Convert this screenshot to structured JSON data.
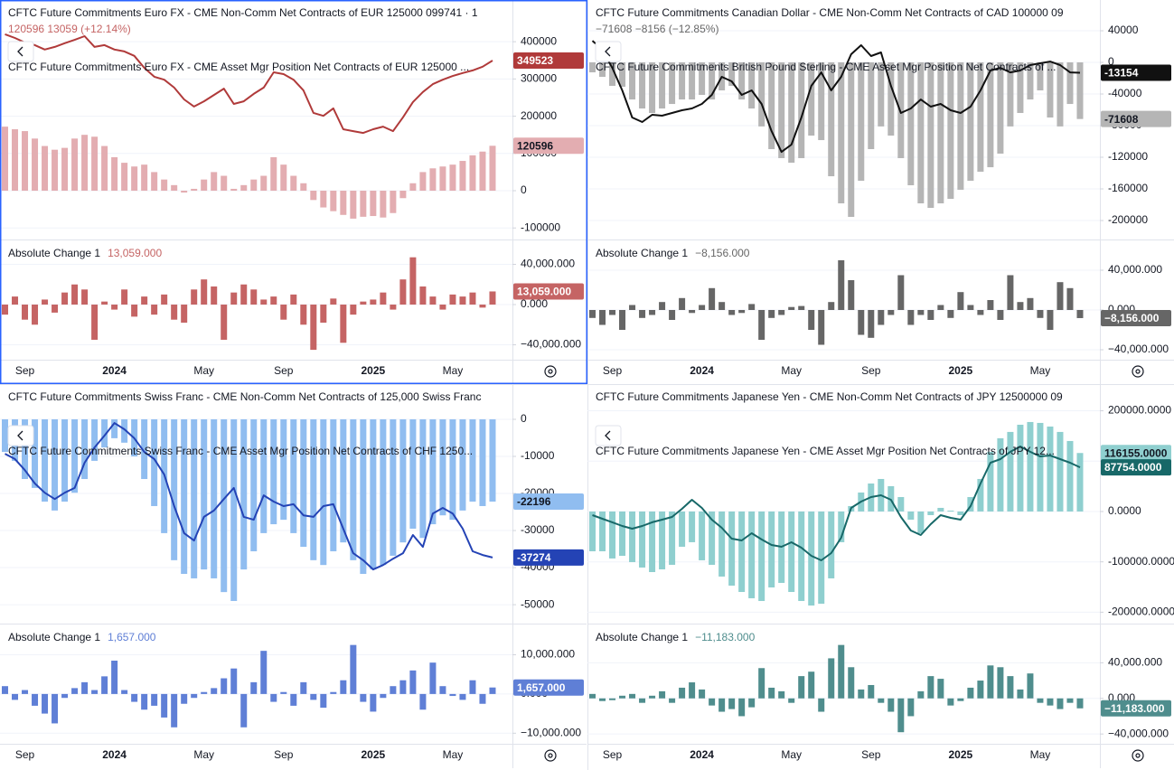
{
  "chart_data": [
    {
      "type": "line_bar",
      "legend_values": "120596  13059 (+12.14%)",
      "categories": [
        null,
        null,
        "Sep",
        null,
        null,
        null,
        null,
        null,
        null,
        null,
        null,
        "2024",
        null,
        null,
        null,
        null,
        null,
        null,
        null,
        null,
        "May",
        null,
        null,
        null,
        null,
        null,
        null,
        null,
        "Sep",
        null,
        null,
        null,
        null,
        null,
        null,
        null,
        null,
        "2025",
        null,
        null,
        null,
        null,
        null,
        null,
        null,
        "May",
        null,
        null,
        null,
        null
      ],
      "ylim": [
        -131000,
        512000
      ],
      "yticks": [
        400000,
        300000,
        200000,
        100000,
        0,
        -100000
      ],
      "series": [
        {
          "name": "CFTC Future Commitments Euro FX - CME Non-Comm Net Contracts of EUR 125000 099741 · 1",
          "kind": "bar",
          "color": "#e3adb1",
          "values": [
            172000,
            165000,
            160000,
            140000,
            120000,
            110000,
            115000,
            140000,
            150000,
            145000,
            120000,
            90000,
            75000,
            65000,
            70000,
            50000,
            30000,
            15000,
            -5000,
            5000,
            30000,
            50000,
            40000,
            5000,
            15000,
            30000,
            40000,
            90000,
            70000,
            40000,
            20000,
            -25000,
            -45000,
            -55000,
            -65000,
            -75000,
            -70000,
            -68000,
            -72000,
            -60000,
            -20000,
            20000,
            50000,
            60000,
            65000,
            70000,
            80000,
            95000,
            105000,
            120596
          ]
        },
        {
          "name": "CFTC Future Commitments Euro FX - CME Asset Mgr Position Net Contracts of EUR 125000 ...",
          "kind": "line",
          "color": "#b03a3a",
          "values": [
            420000,
            410000,
            398000,
            391000,
            379000,
            386000,
            396000,
            405000,
            415000,
            386000,
            391000,
            379000,
            374000,
            362000,
            330000,
            306000,
            298000,
            277000,
            245000,
            226000,
            240000,
            257000,
            274000,
            233000,
            240000,
            260000,
            277000,
            318000,
            313000,
            298000,
            269000,
            209000,
            201000,
            221000,
            165000,
            160000,
            155000,
            165000,
            172000,
            160000,
            197000,
            238000,
            265000,
            286000,
            298000,
            308000,
            316000,
            323000,
            333000,
            349523
          ]
        }
      ],
      "panel": {
        "type": "bar",
        "title": "Absolute Change 1",
        "tag": "13,059.000",
        "color": "#c56464",
        "ylim": [
          -54800,
          64700
        ],
        "yticks": [
          {
            "value": 40000,
            "label": "40,000.000"
          },
          {
            "value": 0,
            "label": "0.000"
          },
          {
            "value": -40000,
            "label": "−40,000.000"
          }
        ],
        "values": [
          -10000,
          8000,
          -15000,
          -20000,
          5000,
          -8000,
          12000,
          20000,
          15000,
          -35000,
          3000,
          -5000,
          15000,
          -12000,
          8000,
          -10000,
          10000,
          -15000,
          -18000,
          15000,
          25000,
          18000,
          -35000,
          12000,
          20000,
          15000,
          5000,
          8000,
          -15000,
          10000,
          -20000,
          -45000,
          -18000,
          6000,
          -38000,
          -10000,
          3000,
          5000,
          12000,
          -5000,
          25000,
          47000,
          18000,
          8000,
          -5000,
          10000,
          8000,
          12000,
          -3000,
          13059
        ]
      }
    },
    {
      "type": "line_bar",
      "legend_values": "−71608  −8156 (−12.85%)",
      "categories": [
        null,
        null,
        "Sep",
        null,
        null,
        null,
        null,
        null,
        null,
        null,
        null,
        "2024",
        null,
        null,
        null,
        null,
        null,
        null,
        null,
        null,
        "May",
        null,
        null,
        null,
        null,
        null,
        null,
        null,
        "Sep",
        null,
        null,
        null,
        null,
        null,
        null,
        null,
        null,
        "2025",
        null,
        null,
        null,
        null,
        null,
        null,
        null,
        "May",
        null,
        null,
        null,
        null
      ],
      "ylim": [
        -224000,
        78900
      ],
      "yticks": [
        40000,
        0,
        -40000,
        -80000,
        -120000,
        -160000,
        -200000
      ],
      "series": [
        {
          "name": "CFTC Future Commitments Canadian Dollar - CME Non-Comm Net Contracts of CAD 100000 09",
          "kind": "bar",
          "color": "#b5b5b5",
          "values": [
            -12600,
            -18300,
            -29700,
            -30900,
            -46900,
            -58300,
            -64000,
            -58300,
            -52600,
            -46900,
            -46900,
            -41100,
            -46900,
            -35400,
            -29700,
            -46900,
            -58300,
            -81000,
            -109700,
            -121100,
            -126900,
            -121100,
            -92600,
            -98300,
            -144000,
            -178300,
            -195400,
            -149700,
            -109700,
            -81000,
            -92600,
            -121100,
            -155400,
            -178300,
            -184000,
            -178300,
            -172600,
            -161100,
            -149700,
            -138300,
            -132600,
            -115400,
            -81000,
            -64000,
            -46900,
            -35400,
            -69700,
            -81000,
            -52600,
            -71608
          ]
        },
        {
          "name": "CFTC Future Commitments British Pound Sterling - CME Asset Mgr Position Net Contracts of ...",
          "kind": "line",
          "color": "#111111",
          "values": [
            27400,
            16000,
            -6900,
            -35400,
            -69700,
            -75400,
            -66300,
            -67400,
            -64000,
            -60600,
            -58300,
            -52600,
            -41100,
            -18300,
            -24000,
            -41100,
            -35400,
            -52600,
            -86900,
            -113200,
            -104000,
            -69700,
            -29700,
            -12600,
            -35400,
            -18300,
            10300,
            21700,
            8000,
            12600,
            -29700,
            -64000,
            -58300,
            -46900,
            -56000,
            -52600,
            -60600,
            -64000,
            -56000,
            -35400,
            -10300,
            -6900,
            -12600,
            -10300,
            -3400,
            -1100,
            1100,
            -3400,
            -12600,
            -13154
          ]
        }
      ],
      "panel": {
        "type": "bar",
        "title": "Absolute Change 1",
        "tag": "−8,156.000",
        "color": "#666666",
        "ylim": [
          -50000,
          70900
        ],
        "yticks": [
          {
            "value": 40000,
            "label": "40,000.000"
          },
          {
            "value": 0,
            "label": "0.000"
          },
          {
            "value": -40000,
            "label": "−40,000.000"
          }
        ],
        "values": [
          -8000,
          -15000,
          -5000,
          -20000,
          5000,
          -8000,
          -5000,
          8000,
          -10000,
          12000,
          -3000,
          5000,
          22000,
          8000,
          -5000,
          -3000,
          6000,
          -30000,
          -8000,
          -5000,
          3000,
          4000,
          -20000,
          -35000,
          8000,
          50000,
          30000,
          -25000,
          -28000,
          -15000,
          -5000,
          35000,
          -15000,
          -5000,
          -10000,
          5000,
          -8000,
          18000,
          5000,
          -5000,
          10000,
          -10000,
          35000,
          8000,
          12000,
          -8000,
          -20000,
          28000,
          22000,
          -8156
        ]
      }
    },
    {
      "type": "line_bar",
      "categories": [
        null,
        null,
        "Sep",
        null,
        null,
        null,
        null,
        null,
        null,
        null,
        null,
        "2024",
        null,
        null,
        null,
        null,
        null,
        null,
        null,
        null,
        "May",
        null,
        null,
        null,
        null,
        null,
        null,
        null,
        "Sep",
        null,
        null,
        null,
        null,
        null,
        null,
        null,
        null,
        "2025",
        null,
        null,
        null,
        null,
        null,
        null,
        null,
        "May",
        null,
        null,
        null,
        null
      ],
      "ylim": [
        -55100,
        9500
      ],
      "yticks": [
        0,
        -10000,
        -20000,
        -30000,
        -40000,
        -50000
      ],
      "series": [
        {
          "name": "CFTC Future Commitments Swiss Franc - CME Non-Comm Net Contracts of 125,000 Swiss Franc",
          "kind": "bar",
          "color": "#90bdf0",
          "values": [
            -8800,
            -11200,
            -16100,
            -18500,
            -22200,
            -24600,
            -22200,
            -19800,
            -16100,
            -11200,
            -7600,
            -5100,
            -6300,
            -10000,
            -16100,
            -23400,
            -30700,
            -38000,
            -41700,
            -42900,
            -40500,
            -42900,
            -46600,
            -49000,
            -40500,
            -35600,
            -30700,
            -28300,
            -27100,
            -30700,
            -34400,
            -38000,
            -39300,
            -35600,
            -33200,
            -38000,
            -41700,
            -40500,
            -39300,
            -36800,
            -33200,
            -29500,
            -32000,
            -28300,
            -25900,
            -27100,
            -24600,
            -22200,
            -23400,
            -22196
          ]
        },
        {
          "name": "CFTC Future Commitments Swiss Franc - CME Asset Mgr Position Net Contracts of CHF 1250...",
          "kind": "line",
          "color": "#2443b5",
          "values": [
            -9300,
            -10700,
            -13700,
            -17300,
            -19800,
            -21500,
            -19800,
            -18500,
            -11700,
            -7600,
            -4400,
            -1000,
            -2700,
            -5100,
            -8800,
            -10700,
            -14900,
            -23400,
            -30700,
            -32700,
            -26300,
            -24600,
            -21500,
            -18500,
            -26300,
            -27100,
            -20500,
            -22200,
            -23400,
            -22900,
            -25900,
            -26300,
            -23400,
            -22900,
            -29500,
            -36100,
            -38000,
            -40500,
            -39300,
            -37600,
            -36100,
            -31200,
            -34400,
            -25400,
            -23900,
            -25400,
            -29500,
            -35600,
            -36600,
            -37274
          ]
        }
      ],
      "panel": {
        "type": "bar",
        "title": "Absolute Change 1",
        "tag": "1,657.000",
        "color": "#5f7fd6",
        "ylim": [
          -12700,
          17950
        ],
        "yticks": [
          {
            "value": 10000,
            "label": "10,000.000"
          },
          {
            "value": 0,
            "label": "0.000"
          },
          {
            "value": -10000,
            "label": "−10,000.000"
          }
        ],
        "values": [
          2000,
          -1500,
          1000,
          -3000,
          -5000,
          -7500,
          -1000,
          1500,
          3000,
          1000,
          4500,
          8500,
          1000,
          -2000,
          -4000,
          -3000,
          -6000,
          -8500,
          -2500,
          -1000,
          500,
          1500,
          4000,
          6500,
          -8500,
          3000,
          11000,
          -2000,
          500,
          -3000,
          3000,
          -1500,
          -3500,
          500,
          3500,
          12500,
          -2000,
          -4500,
          -1000,
          2000,
          3500,
          6000,
          -4000,
          8000,
          2000,
          -500,
          -1500,
          3500,
          -2500,
          1657
        ]
      }
    },
    {
      "type": "line_bar",
      "categories": [
        null,
        null,
        "Sep",
        null,
        null,
        null,
        null,
        null,
        null,
        null,
        null,
        "2024",
        null,
        null,
        null,
        null,
        null,
        null,
        null,
        null,
        "May",
        null,
        null,
        null,
        null,
        null,
        null,
        null,
        "Sep",
        null,
        null,
        null,
        null,
        null,
        null,
        null,
        null,
        "2025",
        null,
        null,
        null,
        null,
        null,
        null,
        null,
        "May",
        null,
        null,
        null,
        null
      ],
      "ylim": [
        -222600,
        253000
      ],
      "yticks": [
        {
          "value": 200000,
          "label": "200000.0000"
        },
        {
          "value": 100000,
          "label": "100000.0000"
        },
        {
          "value": 0,
          "label": "0.0000"
        },
        {
          "value": -100000,
          "label": "-100000.0000"
        },
        {
          "value": -200000,
          "label": "-200000.0000"
        }
      ],
      "series": [
        {
          "name": "CFTC Future Commitments Japanese Yen - CME Non-Comm Net Contracts of JPY 12500000 09",
          "kind": "bar",
          "color": "#8fcfcf",
          "tag": "116155.0000",
          "values": [
            -79000,
            -79000,
            -93300,
            -88000,
            -100500,
            -111300,
            -120300,
            -114900,
            -105900,
            -70000,
            -61000,
            -96900,
            -105900,
            -129200,
            -147200,
            -159800,
            -172300,
            -177700,
            -150800,
            -141800,
            -159800,
            -177700,
            -186700,
            -183100,
            -132800,
            -61000,
            10800,
            37700,
            55600,
            64600,
            50300,
            28700,
            -16200,
            -43100,
            -7200,
            7200,
            1800,
            -7200,
            28700,
            64600,
            118500,
            145400,
            158000,
            172300,
            177700,
            175900,
            168700,
            158000,
            140000,
            116155
          ]
        },
        {
          "name": "CFTC Future Commitments Japanese Yen - CME Asset Mgr Position Net Contracts of JPY 12...",
          "kind": "line",
          "color": "#176868",
          "tag": "87754.0000",
          "values": [
            -7200,
            -14400,
            -21500,
            -28700,
            -34100,
            -28700,
            -21500,
            -16200,
            -10800,
            5400,
            23300,
            7200,
            -16200,
            -32300,
            -53900,
            -57400,
            -43100,
            -55600,
            -66400,
            -70000,
            -61000,
            -71800,
            -88000,
            -96900,
            -82600,
            -52100,
            7200,
            19700,
            28700,
            32300,
            23300,
            -10800,
            -37700,
            -46700,
            -25100,
            -7200,
            -12600,
            -16200,
            10800,
            55600,
            96900,
            104100,
            118500,
            129200,
            118500,
            109500,
            111300,
            104100,
            96900,
            87754
          ]
        }
      ],
      "panel": {
        "type": "bar",
        "title": "Absolute Change 1",
        "tag": "−11,183.000",
        "color": "#4f8d8d",
        "ylim": [
          -51000,
          84000
        ],
        "yticks": [
          {
            "value": 40000,
            "label": "40,000.000"
          },
          {
            "value": 0,
            "label": "0.000"
          },
          {
            "value": -40000,
            "label": "−40,000.000"
          }
        ],
        "values": [
          5000,
          -3000,
          -2000,
          3000,
          5000,
          -5000,
          3000,
          8000,
          -5000,
          12000,
          18000,
          10000,
          -8000,
          -15000,
          -12000,
          -20000,
          -10000,
          34000,
          12000,
          8000,
          -5000,
          25000,
          30000,
          -15000,
          45000,
          60000,
          35000,
          10000,
          15000,
          -5000,
          -15000,
          -38000,
          -20000,
          8000,
          25000,
          22000,
          -8000,
          -3000,
          12000,
          20000,
          37000,
          35000,
          25000,
          10000,
          28000,
          -5000,
          -8000,
          -12000,
          -5000,
          -11183
        ]
      }
    }
  ]
}
